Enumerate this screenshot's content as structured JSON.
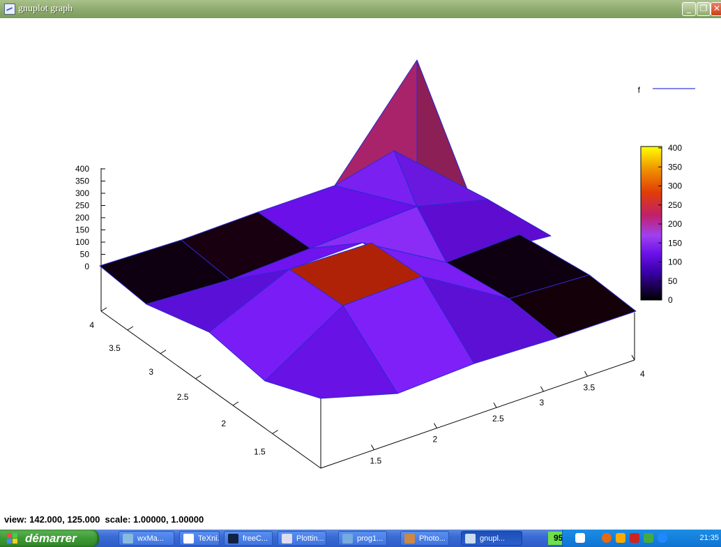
{
  "window": {
    "title": "gnuplot graph",
    "min": "_",
    "max": "❐",
    "close": "✕"
  },
  "status_line": "view: 142.000, 125.000  scale: 1.00000, 1.00000",
  "chart_data": {
    "type": "surface",
    "legend": {
      "entries": [
        "f"
      ],
      "placement": "top-right",
      "line_color": "#3b3bd9"
    },
    "z_ticks": [
      "400",
      "350",
      "300",
      "250",
      "200",
      "150",
      "100",
      "50",
      "0"
    ],
    "x_ticks": [
      "1.5",
      "2",
      "2.5",
      "3",
      "3.5",
      "4"
    ],
    "y_ticks": [
      "1.5",
      "2",
      "2.5",
      "3",
      "3.5",
      "4"
    ],
    "zlim": [
      0,
      400
    ],
    "colorbox": {
      "ticks": [
        "400",
        "350",
        "300",
        "250",
        "200",
        "150",
        "100",
        "50",
        "0"
      ],
      "range": [
        0,
        400
      ],
      "palette": [
        "#000000",
        "#5a00d8",
        "#9c3cff",
        "#c0207a",
        "#e0300a",
        "#f08000",
        "#ffff00"
      ]
    },
    "grid_z": [
      [
        0,
        0,
        100,
        0,
        0
      ],
      [
        0,
        100,
        400,
        100,
        0
      ],
      [
        100,
        200,
        100,
        0,
        0
      ],
      [
        0,
        100,
        100,
        100,
        0
      ],
      [
        0,
        0,
        100,
        0,
        0
      ]
    ]
  },
  "taskbar": {
    "start_label": "démarrer",
    "buttons": [
      {
        "label": "wxMa...",
        "icon_color": "#8bd"
      },
      {
        "label": "TeXni...",
        "icon_color": "#fff"
      },
      {
        "label": "freeC...",
        "icon_color": "#124"
      },
      {
        "label": "Plottin...",
        "icon_color": "#dde"
      },
      {
        "label": "prog1...",
        "icon_color": "#7ad"
      },
      {
        "label": "Photo...",
        "icon_color": "#c84"
      },
      {
        "label": "gnupl...",
        "icon_color": "#cde"
      }
    ],
    "battery": "95%",
    "clock": "21:35"
  }
}
